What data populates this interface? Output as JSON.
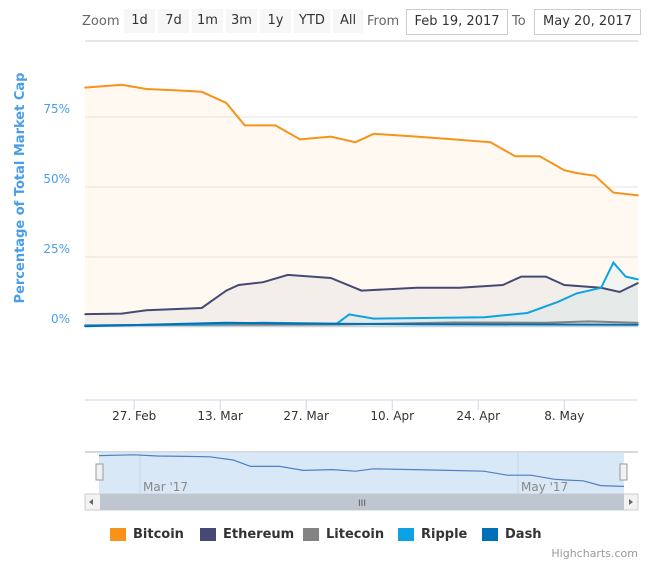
{
  "range_selector": {
    "zoom_label": "Zoom",
    "buttons": [
      "1d",
      "7d",
      "1m",
      "3m",
      "1y",
      "YTD",
      "All"
    ],
    "from_label": "From",
    "from_value": "Feb 19, 2017",
    "to_label": "To",
    "to_value": "May 20, 2017"
  },
  "credits": "Highcharts.com",
  "navigator": {
    "labels": [
      "Mar '17",
      "May '17"
    ],
    "scrollbar_grip": "III"
  },
  "chart_data": {
    "type": "area",
    "ylabel": "Percentage of Total Market Cap",
    "ylim": [
      0,
      100
    ],
    "yticks": [
      "0%",
      "25%",
      "50%",
      "75%"
    ],
    "xlim": [
      "2017-02-19",
      "2017-05-20"
    ],
    "xticks": [
      {
        "date": "2017-02-27",
        "label": "27. Feb"
      },
      {
        "date": "2017-03-13",
        "label": "13. Mar"
      },
      {
        "date": "2017-03-27",
        "label": "27. Mar"
      },
      {
        "date": "2017-04-10",
        "label": "10. Apr"
      },
      {
        "date": "2017-04-24",
        "label": "24. Apr"
      },
      {
        "date": "2017-05-08",
        "label": "8. May"
      }
    ],
    "grid": true,
    "legend_placement": "bottom",
    "series": [
      {
        "name": "Bitcoin",
        "color": "#f7931a",
        "points": [
          [
            "2017-02-19",
            85.5
          ],
          [
            "2017-02-25",
            86.5
          ],
          [
            "2017-03-01",
            85
          ],
          [
            "2017-03-06",
            84.5
          ],
          [
            "2017-03-10",
            84
          ],
          [
            "2017-03-14",
            80
          ],
          [
            "2017-03-17",
            72
          ],
          [
            "2017-03-22",
            72
          ],
          [
            "2017-03-26",
            67
          ],
          [
            "2017-03-31",
            68
          ],
          [
            "2017-04-04",
            66
          ],
          [
            "2017-04-07",
            69
          ],
          [
            "2017-04-14",
            68
          ],
          [
            "2017-04-20",
            67
          ],
          [
            "2017-04-26",
            66
          ],
          [
            "2017-04-30",
            61
          ],
          [
            "2017-05-04",
            61
          ],
          [
            "2017-05-08",
            56
          ],
          [
            "2017-05-10",
            55
          ],
          [
            "2017-05-13",
            54
          ],
          [
            "2017-05-16",
            48
          ],
          [
            "2017-05-20",
            47
          ]
        ]
      },
      {
        "name": "Ethereum",
        "color": "#454a75",
        "points": [
          [
            "2017-02-19",
            4.6
          ],
          [
            "2017-02-25",
            4.8
          ],
          [
            "2017-03-01",
            6
          ],
          [
            "2017-03-10",
            6.8
          ],
          [
            "2017-03-14",
            13
          ],
          [
            "2017-03-16",
            15
          ],
          [
            "2017-03-20",
            16
          ],
          [
            "2017-03-24",
            18.6
          ],
          [
            "2017-03-31",
            17.5
          ],
          [
            "2017-04-05",
            13
          ],
          [
            "2017-04-14",
            14
          ],
          [
            "2017-04-21",
            14
          ],
          [
            "2017-04-28",
            15
          ],
          [
            "2017-05-01",
            18
          ],
          [
            "2017-05-05",
            18
          ],
          [
            "2017-05-08",
            15
          ],
          [
            "2017-05-14",
            14
          ],
          [
            "2017-05-17",
            12.5
          ],
          [
            "2017-05-20",
            15.7
          ]
        ]
      },
      {
        "name": "Litecoin",
        "color": "#838383",
        "points": [
          [
            "2017-02-19",
            0.6
          ],
          [
            "2017-03-15",
            0.8
          ],
          [
            "2017-04-01",
            0.9
          ],
          [
            "2017-04-20",
            1.6
          ],
          [
            "2017-05-05",
            1.5
          ],
          [
            "2017-05-12",
            2
          ],
          [
            "2017-05-20",
            1.5
          ]
        ]
      },
      {
        "name": "Ripple",
        "color": "#0da3e2",
        "points": [
          [
            "2017-02-19",
            0.5
          ],
          [
            "2017-03-10",
            1
          ],
          [
            "2017-03-20",
            1.5
          ],
          [
            "2017-04-01",
            1.2
          ],
          [
            "2017-04-03",
            4.5
          ],
          [
            "2017-04-07",
            3
          ],
          [
            "2017-04-25",
            3.5
          ],
          [
            "2017-05-02",
            5
          ],
          [
            "2017-05-07",
            9
          ],
          [
            "2017-05-10",
            12
          ],
          [
            "2017-05-14",
            14
          ],
          [
            "2017-05-16",
            23
          ],
          [
            "2017-05-18",
            18
          ],
          [
            "2017-05-20",
            17
          ]
        ]
      },
      {
        "name": "Dash",
        "color": "#0071b8",
        "points": [
          [
            "2017-02-19",
            0.3
          ],
          [
            "2017-03-14",
            1.5
          ],
          [
            "2017-03-25",
            1.2
          ],
          [
            "2017-04-15",
            1
          ],
          [
            "2017-05-20",
            0.8
          ]
        ]
      }
    ]
  }
}
